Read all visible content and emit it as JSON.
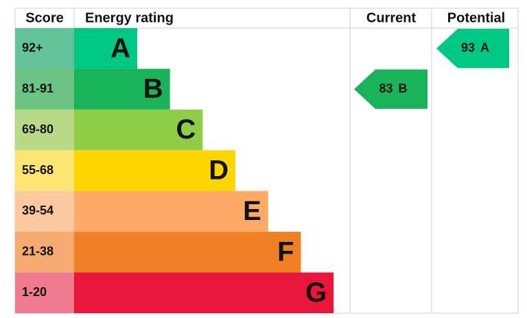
{
  "headers": {
    "score": "Score",
    "energy_rating": "Energy rating",
    "current": "Current",
    "potential": "Potential"
  },
  "bands": [
    {
      "score": "92+",
      "rating": "A",
      "score_color": "#63c39b",
      "color": "#00c781"
    },
    {
      "score": "81-91",
      "rating": "B",
      "score_color": "#6cc383",
      "color": "#19b459"
    },
    {
      "score": "69-80",
      "rating": "C",
      "score_color": "#b8da86",
      "color": "#8dce46"
    },
    {
      "score": "55-68",
      "rating": "D",
      "score_color": "#fde574",
      "color": "#ffd500"
    },
    {
      "score": "39-54",
      "rating": "E",
      "score_color": "#fcc89f",
      "color": "#fcaa65"
    },
    {
      "score": "21-38",
      "rating": "F",
      "score_color": "#f4aa70",
      "color": "#ef8023"
    },
    {
      "score": "1-20",
      "rating": "G",
      "score_color": "#f07b8e",
      "color": "#e9153b"
    }
  ],
  "current": {
    "score": 83,
    "rating": "B",
    "color": "#19b459"
  },
  "potential": {
    "score": 93,
    "rating": "A",
    "color": "#00c781"
  }
}
